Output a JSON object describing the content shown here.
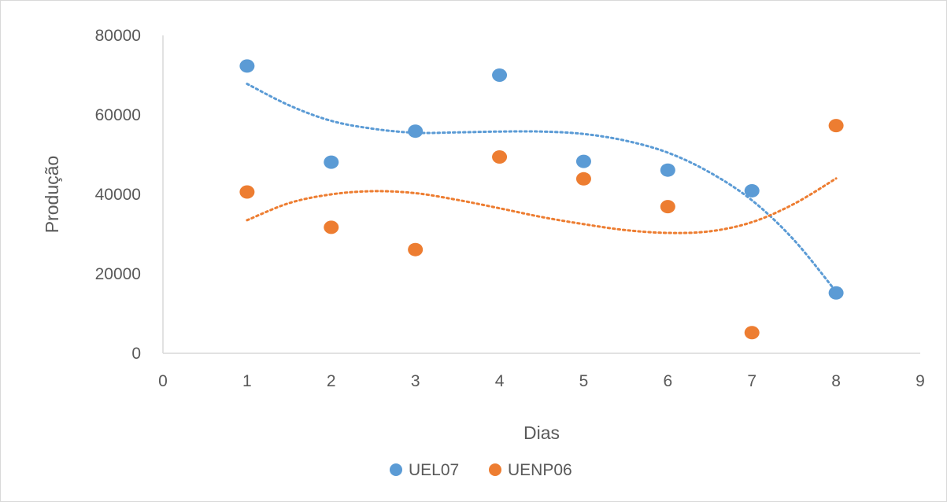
{
  "chart_data": {
    "type": "scatter",
    "title": "",
    "xlabel": "Dias",
    "ylabel": "Produção",
    "xlim": [
      0,
      9
    ],
    "ylim": [
      0,
      80000
    ],
    "x_ticks": [
      0,
      1,
      2,
      3,
      4,
      5,
      6,
      7,
      8,
      9
    ],
    "y_ticks": [
      0,
      20000,
      40000,
      60000,
      80000
    ],
    "grid": false,
    "legend_position": "bottom",
    "trendline": "polynomial, dotted",
    "series": [
      {
        "name": "UEL07",
        "color": "#5B9BD5",
        "x": [
          1,
          2,
          3,
          4,
          5,
          6,
          7,
          8
        ],
        "y": [
          72300,
          48100,
          55900,
          70000,
          48300,
          46100,
          40900,
          15200
        ],
        "trend": [
          [
            1,
            67800
          ],
          [
            1.5,
            62400
          ],
          [
            2,
            58500
          ],
          [
            2.5,
            56500
          ],
          [
            3,
            55500
          ],
          [
            3.5,
            55600
          ],
          [
            4,
            55800
          ],
          [
            4.5,
            55800
          ],
          [
            5,
            55200
          ],
          [
            5.5,
            53500
          ],
          [
            6,
            50500
          ],
          [
            6.5,
            45500
          ],
          [
            7,
            38500
          ],
          [
            7.5,
            28500
          ],
          [
            8,
            15500
          ]
        ]
      },
      {
        "name": "UENP06",
        "color": "#ED7D31",
        "x": [
          1,
          2,
          3,
          4,
          5,
          6,
          7,
          8
        ],
        "y": [
          40600,
          31700,
          26100,
          49400,
          43900,
          36900,
          5200,
          57300
        ],
        "trend": [
          [
            1,
            33500
          ],
          [
            1.5,
            37800
          ],
          [
            2,
            40000
          ],
          [
            2.5,
            40800
          ],
          [
            3,
            40300
          ],
          [
            3.5,
            38600
          ],
          [
            4,
            36500
          ],
          [
            4.5,
            34300
          ],
          [
            5,
            32500
          ],
          [
            5.5,
            31000
          ],
          [
            6,
            30300
          ],
          [
            6.5,
            30700
          ],
          [
            7,
            33000
          ],
          [
            7.5,
            37600
          ],
          [
            8,
            44000
          ]
        ]
      }
    ]
  }
}
